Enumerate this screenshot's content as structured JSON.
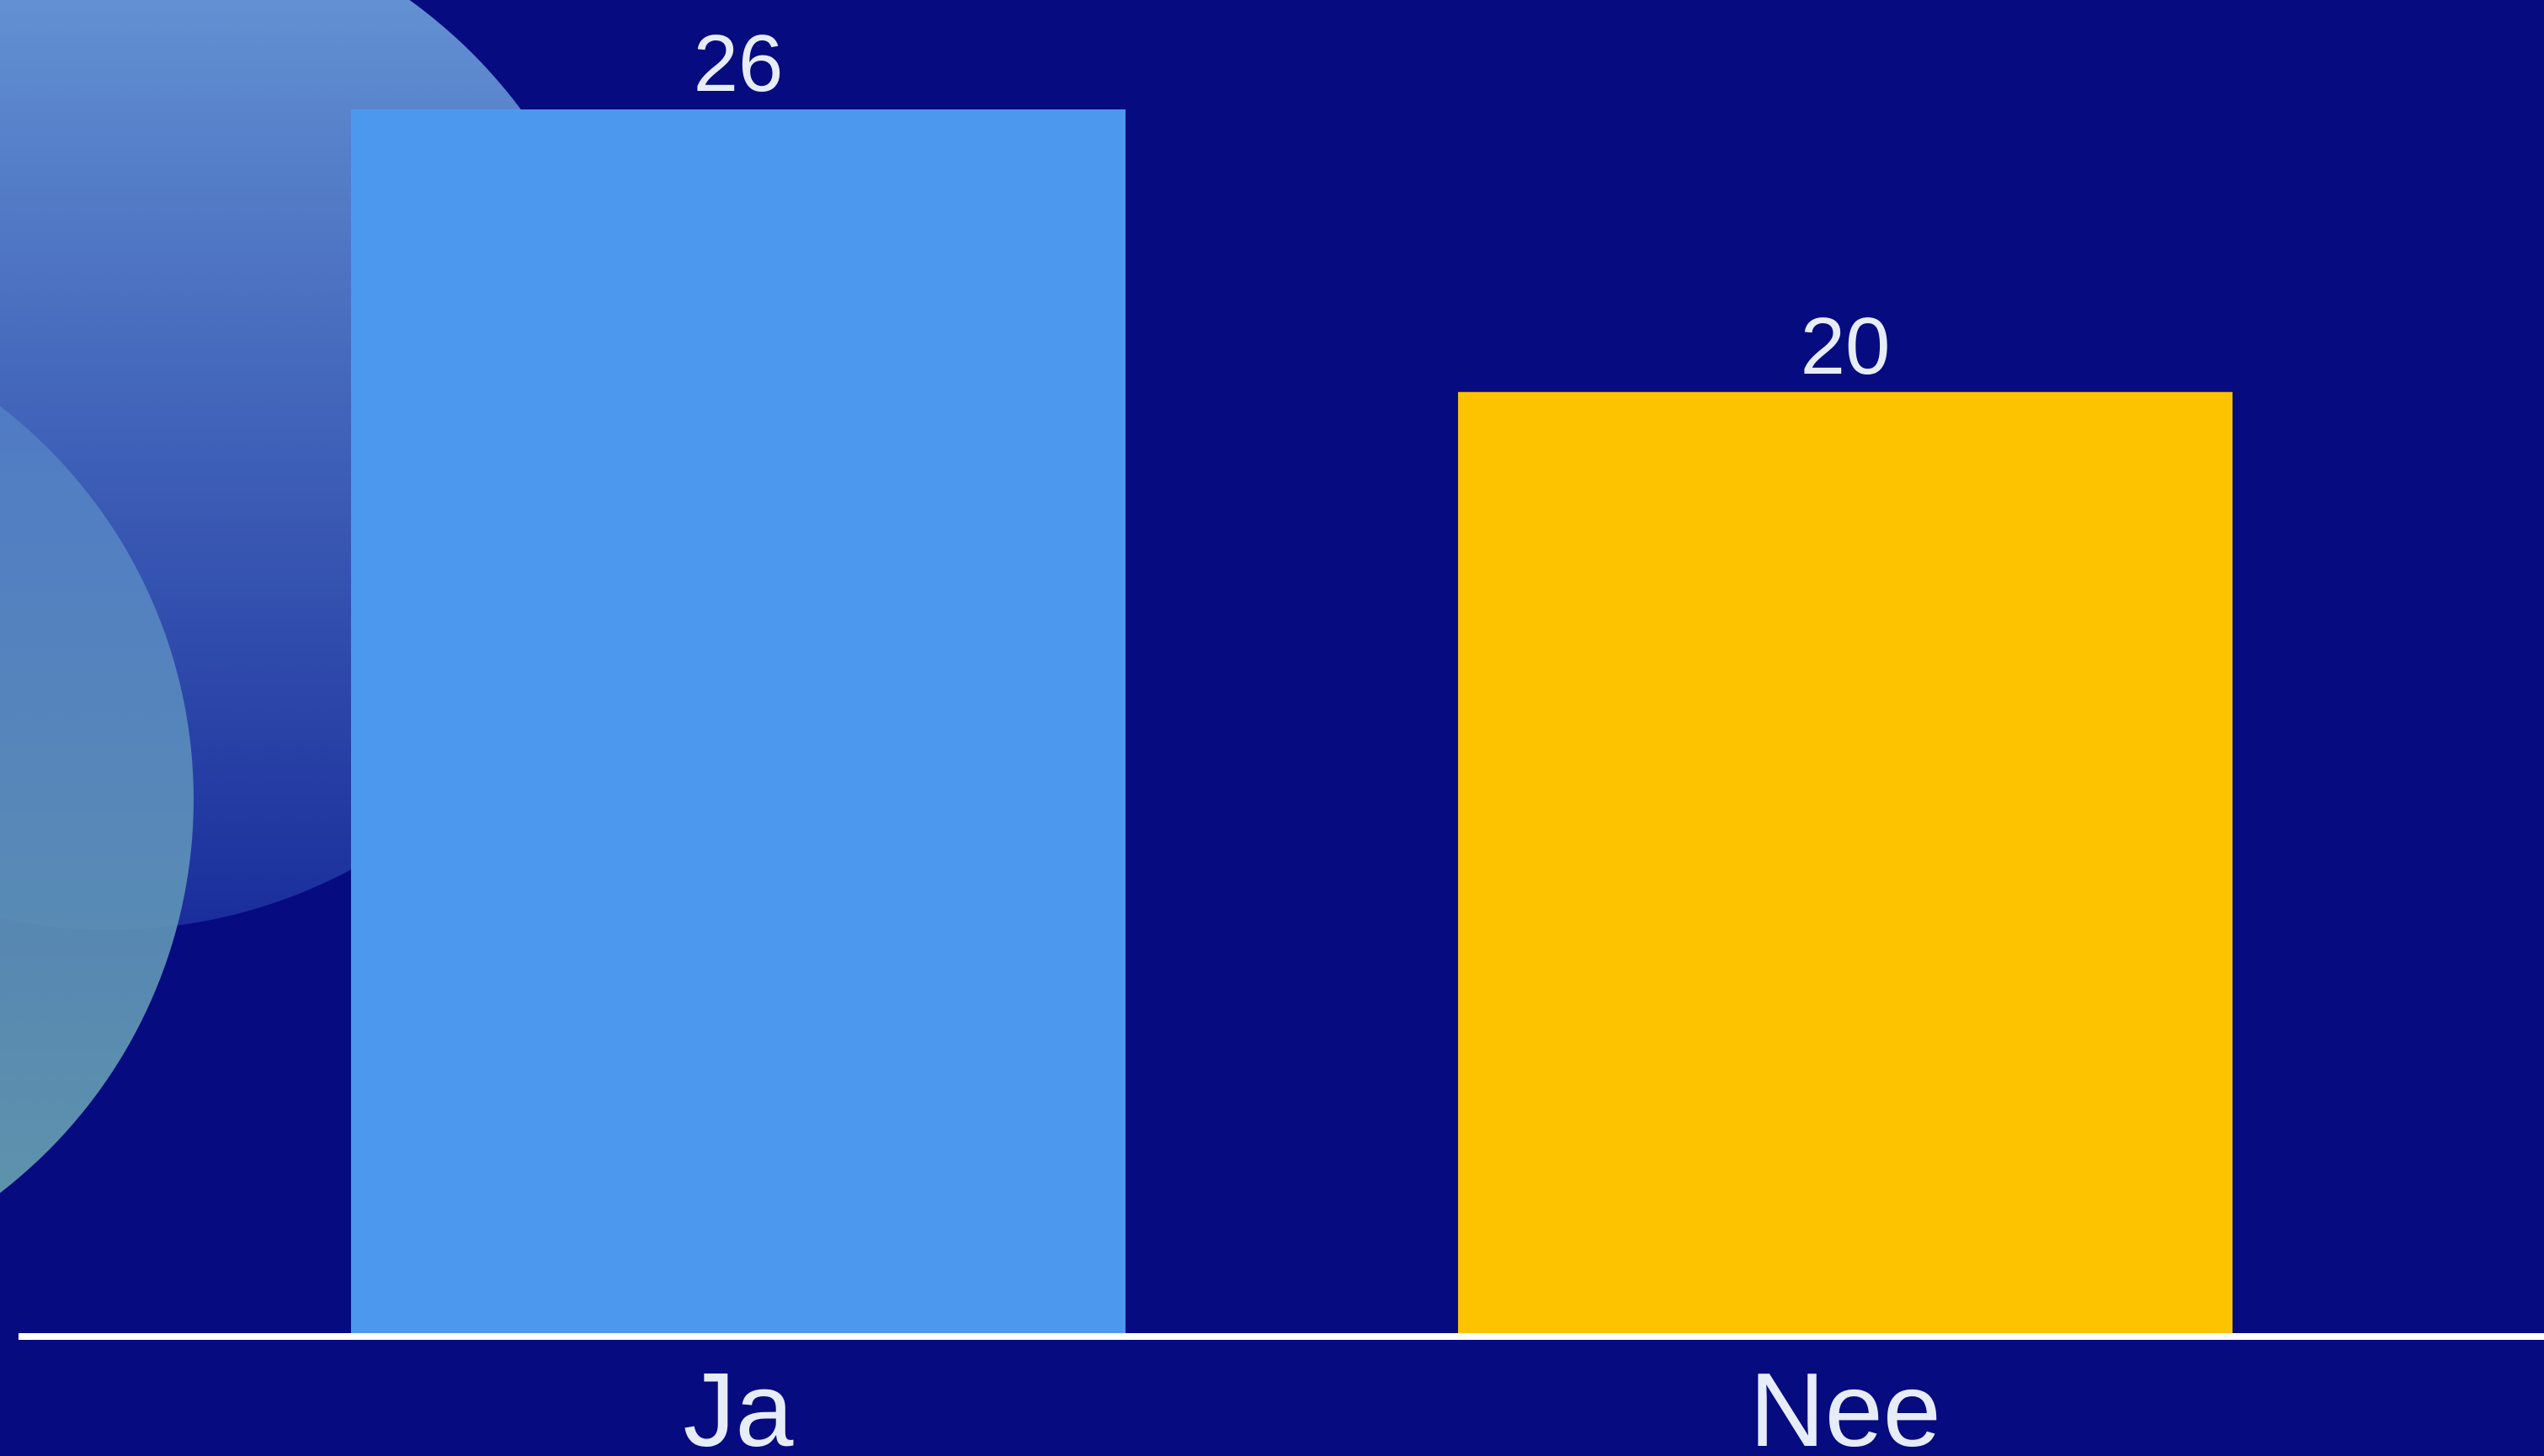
{
  "chart_data": {
    "type": "bar",
    "categories": [
      "Ja",
      "Nee"
    ],
    "values": [
      26,
      20
    ],
    "ylim": [
      0,
      26
    ],
    "grid": false,
    "legend": "none",
    "title": "",
    "xlabel": "",
    "ylabel": ""
  },
  "colors": {
    "background": "#060b80",
    "bars": [
      "#4d98ef",
      "#fdc300"
    ],
    "axis": "#ffffff",
    "text": "#e6edf8",
    "decor_outer_top": "#6fa2dd",
    "decor_outer_bottom": "#1a2f9c",
    "decor_inner_top": "#4f79c9",
    "decor_inner_bottom": "#6aa6ae"
  }
}
